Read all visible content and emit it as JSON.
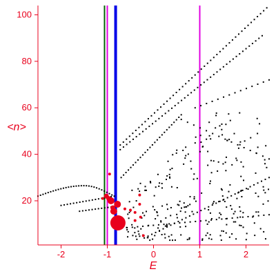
{
  "chart_data": {
    "type": "scatter",
    "title": "",
    "xlabel": "E",
    "ylabel": "<n>",
    "xlim": [
      -2.5,
      2.5
    ],
    "ylim": [
      1,
      104
    ],
    "xticks": [
      -2,
      -1,
      0,
      1,
      2
    ],
    "yticks": [
      20,
      40,
      60,
      80,
      100
    ],
    "grid": false,
    "colors": {
      "axis": "#e8001c",
      "black_points": "#000000",
      "red_points": "#e8001c"
    },
    "vlines": [
      {
        "name": "",
        "x": -1.06,
        "color": "#006400"
      },
      {
        "name": "",
        "x": -1.0,
        "color": "#e000e0"
      },
      {
        "name": "",
        "x": -0.82,
        "color": "#0000e8"
      },
      {
        "name": "",
        "x": 1.0,
        "color": "#e000e0"
      }
    ],
    "red_points": [
      {
        "x": -0.77,
        "y": 10.5,
        "size": "large"
      },
      {
        "x": -0.86,
        "y": 15.5,
        "size": "medium"
      },
      {
        "x": -0.78,
        "y": 18.5,
        "size": "medium"
      },
      {
        "x": -0.92,
        "y": 20.0,
        "size": "medium"
      },
      {
        "x": -0.97,
        "y": 21.0,
        "size": "small"
      },
      {
        "x": -1.02,
        "y": 22.0,
        "size": "small"
      },
      {
        "x": -0.88,
        "y": 17.0,
        "size": "small"
      },
      {
        "x": -0.95,
        "y": 31.5,
        "size": "tiny"
      },
      {
        "x": -0.3,
        "y": 22.5,
        "size": "tiny"
      },
      {
        "x": -0.3,
        "y": 18.5,
        "size": "tiny"
      },
      {
        "x": -0.4,
        "y": 15.0,
        "size": "tiny"
      },
      {
        "x": -0.28,
        "y": 13.0,
        "size": "tiny"
      },
      {
        "x": -0.5,
        "y": 16.0,
        "size": "tiny"
      },
      {
        "x": -0.22,
        "y": 5.0,
        "size": "tiny"
      },
      {
        "x": -0.62,
        "y": 16.5,
        "size": "tiny"
      },
      {
        "x": -0.4,
        "y": 11.5,
        "size": "tiny"
      },
      {
        "x": -1.1,
        "y": 21.0,
        "size": "tiny"
      }
    ],
    "black_series": [
      {
        "name": "",
        "x_range": [
          -2.5,
          -0.9
        ],
        "curve": "arc",
        "n": 30,
        "y_at_start": 22,
        "y_peak": 26.5,
        "x_peak": -1.5,
        "y_at_end": 22.5
      },
      {
        "name": "",
        "x_range": [
          -2.0,
          -0.85
        ],
        "curve": "linear",
        "n": 18,
        "y_at_start": 18,
        "y_at_end": 22
      },
      {
        "name": "",
        "x_range": [
          -1.6,
          -0.85
        ],
        "curve": "linear",
        "n": 12,
        "y_at_start": 15.5,
        "y_at_end": 17.5
      },
      {
        "name": "",
        "x_range": [
          -0.72,
          2.45
        ],
        "curve": "linear",
        "n": 48,
        "y_at_start": 44,
        "y_at_end": 103
      },
      {
        "name": "",
        "x_range": [
          -0.72,
          2.35
        ],
        "curve": "linear",
        "n": 45,
        "y_at_start": 42,
        "y_at_end": 91
      },
      {
        "name": "",
        "x_range": [
          -0.7,
          0.6
        ],
        "curve": "linear",
        "n": 26,
        "y_at_start": 30,
        "y_at_end": 57
      },
      {
        "name": "",
        "x_range": [
          -0.2,
          2.5
        ],
        "curve": "linear",
        "n": 34,
        "y_at_start": 4,
        "y_at_end": 30
      },
      {
        "name": "",
        "x_range": [
          -0.8,
          2.5
        ],
        "curve": "linear",
        "n": 30,
        "y_at_start": 8,
        "y_at_end": 14
      },
      {
        "name": "",
        "x_range": [
          0.9,
          2.5
        ],
        "curve": "linear",
        "n": 14,
        "y_at_start": 60,
        "y_at_end": 72
      },
      {
        "name": "",
        "x_range": [
          0.6,
          2.5
        ],
        "curve": "linear",
        "n": 15,
        "y_at_start": 55,
        "y_at_end": 38
      }
    ],
    "black_cloud": {
      "x_range": [
        -0.6,
        2.5
      ],
      "y_range": [
        3,
        58
      ],
      "n": 260
    }
  }
}
